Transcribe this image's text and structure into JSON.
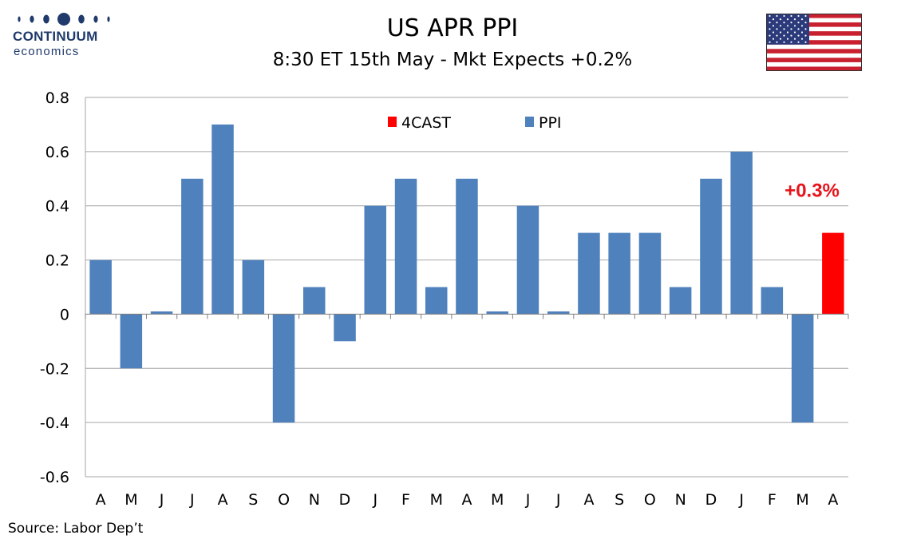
{
  "brand": {
    "name": "CONTINUUM",
    "sub": "economics",
    "color": "#1f3a6b"
  },
  "header": {
    "title": "US APR PPI",
    "subtitle": "8:30 ET 15th May - Mkt Expects +0.2%"
  },
  "flag_icon": "us-flag-icon",
  "source": "Source: Labor Dep’t",
  "chart_data": {
    "type": "bar",
    "categories": [
      "A",
      "M",
      "J",
      "J",
      "A",
      "S",
      "O",
      "N",
      "D",
      "J",
      "F",
      "M",
      "A",
      "M",
      "J",
      "J",
      "A",
      "S",
      "O",
      "N",
      "D",
      "J",
      "F",
      "M",
      "A"
    ],
    "series": [
      {
        "name": "PPI",
        "color": "#4f81bd",
        "values": [
          0.2,
          -0.2,
          0.01,
          0.5,
          0.7,
          0.2,
          -0.4,
          0.1,
          -0.1,
          0.4,
          0.5,
          0.1,
          0.5,
          0.01,
          0.4,
          0.01,
          0.3,
          0.3,
          0.3,
          0.1,
          0.5,
          0.6,
          0.1,
          -0.4,
          null
        ]
      },
      {
        "name": "4CAST",
        "color": "#ff0000",
        "values": [
          null,
          null,
          null,
          null,
          null,
          null,
          null,
          null,
          null,
          null,
          null,
          null,
          null,
          null,
          null,
          null,
          null,
          null,
          null,
          null,
          null,
          null,
          null,
          null,
          0.3
        ]
      }
    ],
    "ylim": [
      -0.6,
      0.8
    ],
    "yticks": [
      "-0.6",
      "-0.4",
      "-0.2",
      "0",
      "0.2",
      "0.4",
      "0.6",
      "0.8"
    ],
    "grid": true,
    "legend": [
      "4CAST",
      "PPI"
    ],
    "legend_position": "top-center",
    "annotation": {
      "text": "+0.3%",
      "color": "#e8141c"
    }
  }
}
